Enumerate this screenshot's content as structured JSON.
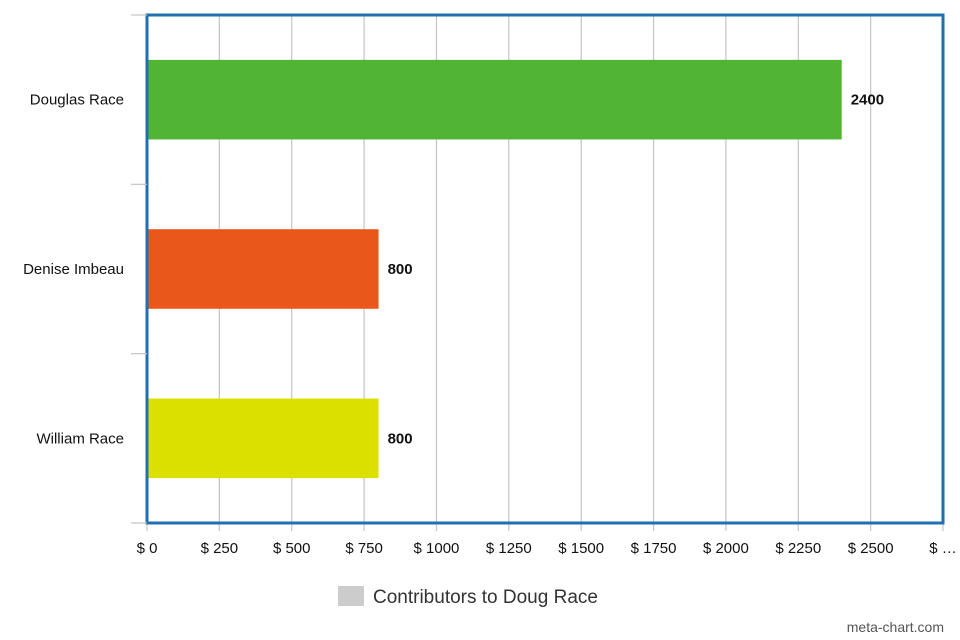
{
  "chart_data": {
    "type": "bar",
    "orientation": "horizontal",
    "categories": [
      "Douglas Race",
      "Denise Imbeau",
      "William Race"
    ],
    "series": [
      {
        "name": "Contributors to Doug Race",
        "values": [
          2400,
          800,
          800
        ],
        "colors": [
          "#52b435",
          "#ea571b",
          "#dce000"
        ]
      }
    ],
    "data_labels": [
      "2400",
      "800",
      "800"
    ],
    "xlim": [
      0,
      2750
    ],
    "x_ticks": [
      0,
      250,
      500,
      750,
      1000,
      1250,
      1500,
      1750,
      2000,
      2250,
      2500,
      2750
    ],
    "x_tick_labels": [
      "$ 0",
      "$ 250",
      "$ 500",
      "$ 750",
      "$ 1000",
      "$ 1250",
      "$ 1500",
      "$ 1750",
      "$ 2000",
      "$ 2250",
      "$ 2500",
      "$ …"
    ],
    "grid": true,
    "legend_position": "bottom",
    "legend_color": "#cccccc",
    "frame_color": "#1f6fb2"
  },
  "credit": "meta-chart.com"
}
